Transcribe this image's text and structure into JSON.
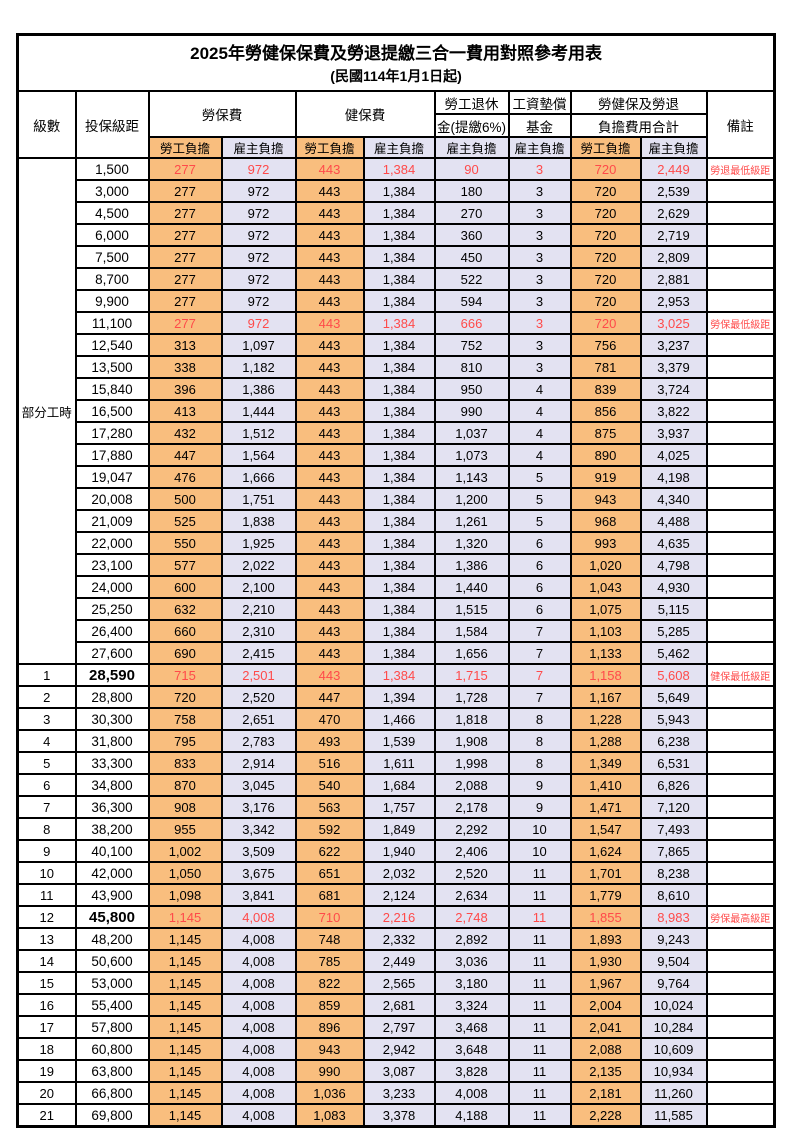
{
  "title": "2025年勞健保保費及勞退提繳三合一費用對照參考用表",
  "subtitle": "(民國114年1月1日起)",
  "colors": {
    "employee_bg": "#f9be7e",
    "employer_bg": "#e3e2f2",
    "highlight_text": "#ff4a4a",
    "border": "#000000"
  },
  "header": {
    "level": "級數",
    "bracket": "投保級距",
    "labor_ins": "勞保費",
    "health_ins": "健保費",
    "pension_line1": "勞工退休",
    "pension_line2": "金(提繳6%)",
    "fund_line1": "工資墊償",
    "fund_line2": "基金",
    "total_line1": "勞健保及勞退",
    "total_line2": "負擔費用合計",
    "remark": "備註",
    "employee": "勞工負擔",
    "employer": "雇主負擔"
  },
  "part_time_label": "部分工時",
  "part_time_rowspan": 23,
  "rows": [
    {
      "level": "",
      "bracket": "1,500",
      "li_emp": "277",
      "li_er": "972",
      "hi_emp": "443",
      "hi_er": "1,384",
      "pension": "90",
      "fund": "3",
      "tot_emp": "720",
      "tot_er": "2,449",
      "remark": "勞退最低級距",
      "highlight": true,
      "big": false
    },
    {
      "level": "",
      "bracket": "3,000",
      "li_emp": "277",
      "li_er": "972",
      "hi_emp": "443",
      "hi_er": "1,384",
      "pension": "180",
      "fund": "3",
      "tot_emp": "720",
      "tot_er": "2,539",
      "remark": "",
      "highlight": false,
      "big": false
    },
    {
      "level": "",
      "bracket": "4,500",
      "li_emp": "277",
      "li_er": "972",
      "hi_emp": "443",
      "hi_er": "1,384",
      "pension": "270",
      "fund": "3",
      "tot_emp": "720",
      "tot_er": "2,629",
      "remark": "",
      "highlight": false,
      "big": false
    },
    {
      "level": "",
      "bracket": "6,000",
      "li_emp": "277",
      "li_er": "972",
      "hi_emp": "443",
      "hi_er": "1,384",
      "pension": "360",
      "fund": "3",
      "tot_emp": "720",
      "tot_er": "2,719",
      "remark": "",
      "highlight": false,
      "big": false
    },
    {
      "level": "",
      "bracket": "7,500",
      "li_emp": "277",
      "li_er": "972",
      "hi_emp": "443",
      "hi_er": "1,384",
      "pension": "450",
      "fund": "3",
      "tot_emp": "720",
      "tot_er": "2,809",
      "remark": "",
      "highlight": false,
      "big": false
    },
    {
      "level": "",
      "bracket": "8,700",
      "li_emp": "277",
      "li_er": "972",
      "hi_emp": "443",
      "hi_er": "1,384",
      "pension": "522",
      "fund": "3",
      "tot_emp": "720",
      "tot_er": "2,881",
      "remark": "",
      "highlight": false,
      "big": false
    },
    {
      "level": "",
      "bracket": "9,900",
      "li_emp": "277",
      "li_er": "972",
      "hi_emp": "443",
      "hi_er": "1,384",
      "pension": "594",
      "fund": "3",
      "tot_emp": "720",
      "tot_er": "2,953",
      "remark": "",
      "highlight": false,
      "big": false
    },
    {
      "level": "",
      "bracket": "11,100",
      "li_emp": "277",
      "li_er": "972",
      "hi_emp": "443",
      "hi_er": "1,384",
      "pension": "666",
      "fund": "3",
      "tot_emp": "720",
      "tot_er": "3,025",
      "remark": "勞保最低級距",
      "highlight": true,
      "big": false
    },
    {
      "level": "",
      "bracket": "12,540",
      "li_emp": "313",
      "li_er": "1,097",
      "hi_emp": "443",
      "hi_er": "1,384",
      "pension": "752",
      "fund": "3",
      "tot_emp": "756",
      "tot_er": "3,237",
      "remark": "",
      "highlight": false,
      "big": false
    },
    {
      "level": "",
      "bracket": "13,500",
      "li_emp": "338",
      "li_er": "1,182",
      "hi_emp": "443",
      "hi_er": "1,384",
      "pension": "810",
      "fund": "3",
      "tot_emp": "781",
      "tot_er": "3,379",
      "remark": "",
      "highlight": false,
      "big": false
    },
    {
      "level": "",
      "bracket": "15,840",
      "li_emp": "396",
      "li_er": "1,386",
      "hi_emp": "443",
      "hi_er": "1,384",
      "pension": "950",
      "fund": "4",
      "tot_emp": "839",
      "tot_er": "3,724",
      "remark": "",
      "highlight": false,
      "big": false
    },
    {
      "level": "",
      "bracket": "16,500",
      "li_emp": "413",
      "li_er": "1,444",
      "hi_emp": "443",
      "hi_er": "1,384",
      "pension": "990",
      "fund": "4",
      "tot_emp": "856",
      "tot_er": "3,822",
      "remark": "",
      "highlight": false,
      "big": false
    },
    {
      "level": "",
      "bracket": "17,280",
      "li_emp": "432",
      "li_er": "1,512",
      "hi_emp": "443",
      "hi_er": "1,384",
      "pension": "1,037",
      "fund": "4",
      "tot_emp": "875",
      "tot_er": "3,937",
      "remark": "",
      "highlight": false,
      "big": false
    },
    {
      "level": "",
      "bracket": "17,880",
      "li_emp": "447",
      "li_er": "1,564",
      "hi_emp": "443",
      "hi_er": "1,384",
      "pension": "1,073",
      "fund": "4",
      "tot_emp": "890",
      "tot_er": "4,025",
      "remark": "",
      "highlight": false,
      "big": false
    },
    {
      "level": "",
      "bracket": "19,047",
      "li_emp": "476",
      "li_er": "1,666",
      "hi_emp": "443",
      "hi_er": "1,384",
      "pension": "1,143",
      "fund": "5",
      "tot_emp": "919",
      "tot_er": "4,198",
      "remark": "",
      "highlight": false,
      "big": false
    },
    {
      "level": "",
      "bracket": "20,008",
      "li_emp": "500",
      "li_er": "1,751",
      "hi_emp": "443",
      "hi_er": "1,384",
      "pension": "1,200",
      "fund": "5",
      "tot_emp": "943",
      "tot_er": "4,340",
      "remark": "",
      "highlight": false,
      "big": false
    },
    {
      "level": "",
      "bracket": "21,009",
      "li_emp": "525",
      "li_er": "1,838",
      "hi_emp": "443",
      "hi_er": "1,384",
      "pension": "1,261",
      "fund": "5",
      "tot_emp": "968",
      "tot_er": "4,488",
      "remark": "",
      "highlight": false,
      "big": false
    },
    {
      "level": "",
      "bracket": "22,000",
      "li_emp": "550",
      "li_er": "1,925",
      "hi_emp": "443",
      "hi_er": "1,384",
      "pension": "1,320",
      "fund": "6",
      "tot_emp": "993",
      "tot_er": "4,635",
      "remark": "",
      "highlight": false,
      "big": false
    },
    {
      "level": "",
      "bracket": "23,100",
      "li_emp": "577",
      "li_er": "2,022",
      "hi_emp": "443",
      "hi_er": "1,384",
      "pension": "1,386",
      "fund": "6",
      "tot_emp": "1,020",
      "tot_er": "4,798",
      "remark": "",
      "highlight": false,
      "big": false
    },
    {
      "level": "",
      "bracket": "24,000",
      "li_emp": "600",
      "li_er": "2,100",
      "hi_emp": "443",
      "hi_er": "1,384",
      "pension": "1,440",
      "fund": "6",
      "tot_emp": "1,043",
      "tot_er": "4,930",
      "remark": "",
      "highlight": false,
      "big": false
    },
    {
      "level": "",
      "bracket": "25,250",
      "li_emp": "632",
      "li_er": "2,210",
      "hi_emp": "443",
      "hi_er": "1,384",
      "pension": "1,515",
      "fund": "6",
      "tot_emp": "1,075",
      "tot_er": "5,115",
      "remark": "",
      "highlight": false,
      "big": false
    },
    {
      "level": "",
      "bracket": "26,400",
      "li_emp": "660",
      "li_er": "2,310",
      "hi_emp": "443",
      "hi_er": "1,384",
      "pension": "1,584",
      "fund": "7",
      "tot_emp": "1,103",
      "tot_er": "5,285",
      "remark": "",
      "highlight": false,
      "big": false
    },
    {
      "level": "",
      "bracket": "27,600",
      "li_emp": "690",
      "li_er": "2,415",
      "hi_emp": "443",
      "hi_er": "1,384",
      "pension": "1,656",
      "fund": "7",
      "tot_emp": "1,133",
      "tot_er": "5,462",
      "remark": "",
      "highlight": false,
      "big": false
    },
    {
      "level": "1",
      "bracket": "28,590",
      "li_emp": "715",
      "li_er": "2,501",
      "hi_emp": "443",
      "hi_er": "1,384",
      "pension": "1,715",
      "fund": "7",
      "tot_emp": "1,158",
      "tot_er": "5,608",
      "remark": "健保最低級距",
      "highlight": true,
      "big": true
    },
    {
      "level": "2",
      "bracket": "28,800",
      "li_emp": "720",
      "li_er": "2,520",
      "hi_emp": "447",
      "hi_er": "1,394",
      "pension": "1,728",
      "fund": "7",
      "tot_emp": "1,167",
      "tot_er": "5,649",
      "remark": "",
      "highlight": false,
      "big": false
    },
    {
      "level": "3",
      "bracket": "30,300",
      "li_emp": "758",
      "li_er": "2,651",
      "hi_emp": "470",
      "hi_er": "1,466",
      "pension": "1,818",
      "fund": "8",
      "tot_emp": "1,228",
      "tot_er": "5,943",
      "remark": "",
      "highlight": false,
      "big": false
    },
    {
      "level": "4",
      "bracket": "31,800",
      "li_emp": "795",
      "li_er": "2,783",
      "hi_emp": "493",
      "hi_er": "1,539",
      "pension": "1,908",
      "fund": "8",
      "tot_emp": "1,288",
      "tot_er": "6,238",
      "remark": "",
      "highlight": false,
      "big": false
    },
    {
      "level": "5",
      "bracket": "33,300",
      "li_emp": "833",
      "li_er": "2,914",
      "hi_emp": "516",
      "hi_er": "1,611",
      "pension": "1,998",
      "fund": "8",
      "tot_emp": "1,349",
      "tot_er": "6,531",
      "remark": "",
      "highlight": false,
      "big": false
    },
    {
      "level": "6",
      "bracket": "34,800",
      "li_emp": "870",
      "li_er": "3,045",
      "hi_emp": "540",
      "hi_er": "1,684",
      "pension": "2,088",
      "fund": "9",
      "tot_emp": "1,410",
      "tot_er": "6,826",
      "remark": "",
      "highlight": false,
      "big": false
    },
    {
      "level": "7",
      "bracket": "36,300",
      "li_emp": "908",
      "li_er": "3,176",
      "hi_emp": "563",
      "hi_er": "1,757",
      "pension": "2,178",
      "fund": "9",
      "tot_emp": "1,471",
      "tot_er": "7,120",
      "remark": "",
      "highlight": false,
      "big": false
    },
    {
      "level": "8",
      "bracket": "38,200",
      "li_emp": "955",
      "li_er": "3,342",
      "hi_emp": "592",
      "hi_er": "1,849",
      "pension": "2,292",
      "fund": "10",
      "tot_emp": "1,547",
      "tot_er": "7,493",
      "remark": "",
      "highlight": false,
      "big": false
    },
    {
      "level": "9",
      "bracket": "40,100",
      "li_emp": "1,002",
      "li_er": "3,509",
      "hi_emp": "622",
      "hi_er": "1,940",
      "pension": "2,406",
      "fund": "10",
      "tot_emp": "1,624",
      "tot_er": "7,865",
      "remark": "",
      "highlight": false,
      "big": false
    },
    {
      "level": "10",
      "bracket": "42,000",
      "li_emp": "1,050",
      "li_er": "3,675",
      "hi_emp": "651",
      "hi_er": "2,032",
      "pension": "2,520",
      "fund": "11",
      "tot_emp": "1,701",
      "tot_er": "8,238",
      "remark": "",
      "highlight": false,
      "big": false
    },
    {
      "level": "11",
      "bracket": "43,900",
      "li_emp": "1,098",
      "li_er": "3,841",
      "hi_emp": "681",
      "hi_er": "2,124",
      "pension": "2,634",
      "fund": "11",
      "tot_emp": "1,779",
      "tot_er": "8,610",
      "remark": "",
      "highlight": false,
      "big": false
    },
    {
      "level": "12",
      "bracket": "45,800",
      "li_emp": "1,145",
      "li_er": "4,008",
      "hi_emp": "710",
      "hi_er": "2,216",
      "pension": "2,748",
      "fund": "11",
      "tot_emp": "1,855",
      "tot_er": "8,983",
      "remark": "勞保最高級距",
      "highlight": true,
      "big": true
    },
    {
      "level": "13",
      "bracket": "48,200",
      "li_emp": "1,145",
      "li_er": "4,008",
      "hi_emp": "748",
      "hi_er": "2,332",
      "pension": "2,892",
      "fund": "11",
      "tot_emp": "1,893",
      "tot_er": "9,243",
      "remark": "",
      "highlight": false,
      "big": false
    },
    {
      "level": "14",
      "bracket": "50,600",
      "li_emp": "1,145",
      "li_er": "4,008",
      "hi_emp": "785",
      "hi_er": "2,449",
      "pension": "3,036",
      "fund": "11",
      "tot_emp": "1,930",
      "tot_er": "9,504",
      "remark": "",
      "highlight": false,
      "big": false
    },
    {
      "level": "15",
      "bracket": "53,000",
      "li_emp": "1,145",
      "li_er": "4,008",
      "hi_emp": "822",
      "hi_er": "2,565",
      "pension": "3,180",
      "fund": "11",
      "tot_emp": "1,967",
      "tot_er": "9,764",
      "remark": "",
      "highlight": false,
      "big": false
    },
    {
      "level": "16",
      "bracket": "55,400",
      "li_emp": "1,145",
      "li_er": "4,008",
      "hi_emp": "859",
      "hi_er": "2,681",
      "pension": "3,324",
      "fund": "11",
      "tot_emp": "2,004",
      "tot_er": "10,024",
      "remark": "",
      "highlight": false,
      "big": false
    },
    {
      "level": "17",
      "bracket": "57,800",
      "li_emp": "1,145",
      "li_er": "4,008",
      "hi_emp": "896",
      "hi_er": "2,797",
      "pension": "3,468",
      "fund": "11",
      "tot_emp": "2,041",
      "tot_er": "10,284",
      "remark": "",
      "highlight": false,
      "big": false
    },
    {
      "level": "18",
      "bracket": "60,800",
      "li_emp": "1,145",
      "li_er": "4,008",
      "hi_emp": "943",
      "hi_er": "2,942",
      "pension": "3,648",
      "fund": "11",
      "tot_emp": "2,088",
      "tot_er": "10,609",
      "remark": "",
      "highlight": false,
      "big": false
    },
    {
      "level": "19",
      "bracket": "63,800",
      "li_emp": "1,145",
      "li_er": "4,008",
      "hi_emp": "990",
      "hi_er": "3,087",
      "pension": "3,828",
      "fund": "11",
      "tot_emp": "2,135",
      "tot_er": "10,934",
      "remark": "",
      "highlight": false,
      "big": false
    },
    {
      "level": "20",
      "bracket": "66,800",
      "li_emp": "1,145",
      "li_er": "4,008",
      "hi_emp": "1,036",
      "hi_er": "3,233",
      "pension": "4,008",
      "fund": "11",
      "tot_emp": "2,181",
      "tot_er": "11,260",
      "remark": "",
      "highlight": false,
      "big": false
    },
    {
      "level": "21",
      "bracket": "69,800",
      "li_emp": "1,145",
      "li_er": "4,008",
      "hi_emp": "1,083",
      "hi_er": "3,378",
      "pension": "4,188",
      "fund": "11",
      "tot_emp": "2,228",
      "tot_er": "11,585",
      "remark": "",
      "highlight": false,
      "big": false
    }
  ]
}
